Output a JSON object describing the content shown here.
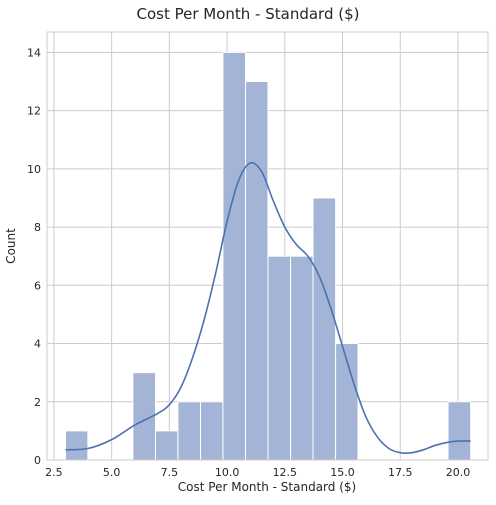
{
  "chart_data": {
    "type": "bar",
    "title": "Cost Per Month - Standard ($)",
    "xlabel": "Cost Per Month - Standard ($)",
    "ylabel": "Count",
    "xlim": [
      2.2,
      21.3
    ],
    "ylim": [
      0,
      14.7
    ],
    "x_ticks": [
      2.5,
      5.0,
      7.5,
      10.0,
      12.5,
      15.0,
      17.5,
      20.0
    ],
    "x_tick_labels": [
      "2.5",
      "5.0",
      "7.5",
      "10.0",
      "12.5",
      "15.0",
      "17.5",
      "20.0"
    ],
    "y_ticks": [
      0,
      2,
      4,
      6,
      8,
      10,
      12,
      14
    ],
    "y_tick_labels": [
      "0",
      "2",
      "4",
      "6",
      "8",
      "10",
      "12",
      "14"
    ],
    "grid": true,
    "bin_edges": [
      3.0,
      3.97,
      4.95,
      5.92,
      6.9,
      7.87,
      8.85,
      9.82,
      10.8,
      11.77,
      12.75,
      13.72,
      14.7,
      15.67,
      16.65,
      17.62,
      18.6,
      19.57,
      20.55
    ],
    "counts": [
      1,
      0,
      0,
      3,
      1,
      2,
      2,
      14,
      13,
      7,
      7,
      9,
      4,
      0,
      0,
      0,
      0,
      2
    ],
    "kde": {
      "x": [
        3.0,
        4.0,
        5.0,
        6.0,
        7.0,
        7.5,
        8.0,
        8.5,
        9.0,
        9.5,
        10.0,
        10.5,
        11.0,
        11.5,
        12.0,
        12.5,
        13.0,
        13.5,
        14.0,
        14.5,
        15.0,
        15.5,
        16.0,
        16.5,
        17.0,
        17.5,
        18.0,
        18.5,
        19.0,
        19.5,
        20.0,
        20.55
      ],
      "y": [
        0.35,
        0.4,
        0.7,
        1.2,
        1.6,
        1.9,
        2.5,
        3.5,
        4.8,
        6.4,
        8.2,
        9.6,
        10.2,
        9.9,
        8.9,
        8.0,
        7.4,
        7.0,
        6.3,
        5.2,
        3.9,
        2.6,
        1.5,
        0.8,
        0.4,
        0.25,
        0.25,
        0.35,
        0.5,
        0.6,
        0.65,
        0.65
      ]
    },
    "colors": {
      "bar_fill": "#a3b4d6",
      "bar_stroke": "#ffffff",
      "kde_line": "#4c72b0",
      "grid": "#cccccc",
      "axes_border": "#cccccc"
    }
  }
}
